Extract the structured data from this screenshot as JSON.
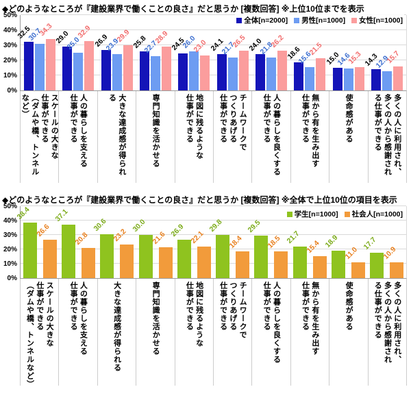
{
  "page_bg": "#ffffff",
  "chart_data": [
    {
      "type": "bar",
      "title": "◆どのようなところが『建設業界で働くことの良さ』だと思うか [複数回答] ※上位10位までを表示",
      "unit": "%",
      "ylim": [
        0,
        50
      ],
      "yticks": [
        "0%",
        "10%",
        "20%",
        "30%",
        "40%",
        "50%"
      ],
      "grid": true,
      "legend_position": "top-right",
      "categories": [
        "スケールの大きな\n仕事ができる\n（ダムや橋、トンネルなど）",
        "人の暮らしを支える\n仕事ができる",
        "大きな達成感が得られる",
        "専門知識を活かせる",
        "地図に残るような\n仕事ができる",
        "チームワークで\nつくりあげる\n仕事ができる",
        "人の暮らしを良くする\n仕事ができる",
        "無から有を生み出す\n仕事ができる",
        "使命感がある",
        "多くの人に利用され、\n多くの人から感謝され\nる仕事ができる"
      ],
      "series": [
        {
          "name": "全体[n=2000]",
          "color": "#1414b8",
          "label_color": "#000000",
          "values": [
            32.5,
            29.0,
            26.9,
            25.8,
            24.5,
            24.1,
            24.0,
            18.6,
            15.0,
            14.3
          ]
        },
        {
          "name": "男性[n=1000]",
          "color": "#6d9cf2",
          "label_color": "#3d6fd0",
          "values": [
            30.7,
            25.0,
            23.9,
            22.7,
            26.0,
            21.7,
            21.8,
            15.6,
            14.6,
            12.9
          ]
        },
        {
          "name": "女性[n=1000]",
          "color": "#fb9d9d",
          "label_color": "#f26d6d",
          "values": [
            34.3,
            32.9,
            29.9,
            28.9,
            23.0,
            26.5,
            26.2,
            21.5,
            15.3,
            15.7
          ]
        }
      ]
    },
    {
      "type": "bar",
      "title": "◆どのようなところが『建設業界で働くことの良さ』だと思うか [複数回答] ※全体で上位10位の項目を表示",
      "unit": "%",
      "ylim": [
        0,
        50
      ],
      "yticks": [
        "0%",
        "10%",
        "20%",
        "30%",
        "40%",
        "50%"
      ],
      "grid": true,
      "legend_position": "top-right",
      "categories": [
        "スケールの大きな\n仕事ができる\n（ダムや橋、トンネルなど）",
        "人の暮らしを支える\n仕事ができる",
        "大きな達成感が得られる",
        "専門知識を活かせる",
        "地図に残るような\n仕事ができる",
        "チームワークで\nつくりあげる\n仕事ができる",
        "人の暮らしを良くする\n仕事ができる",
        "無から有を生み出す\n仕事ができる",
        "使命感がある",
        "多くの人に利用され、\n多くの人から感謝され\nる仕事ができる"
      ],
      "series": [
        {
          "name": "学生[n=1000]",
          "color": "#8fc31f",
          "label_color": "#7cab1a",
          "values": [
            38.4,
            37.1,
            30.6,
            30.0,
            26.9,
            29.8,
            29.5,
            21.7,
            18.9,
            17.7
          ]
        },
        {
          "name": "社会人[n=1000]",
          "color": "#f29b3b",
          "label_color": "#e8801f",
          "values": [
            26.6,
            20.8,
            23.2,
            21.6,
            22.1,
            18.4,
            18.5,
            15.4,
            11.0,
            10.9
          ]
        }
      ]
    }
  ]
}
